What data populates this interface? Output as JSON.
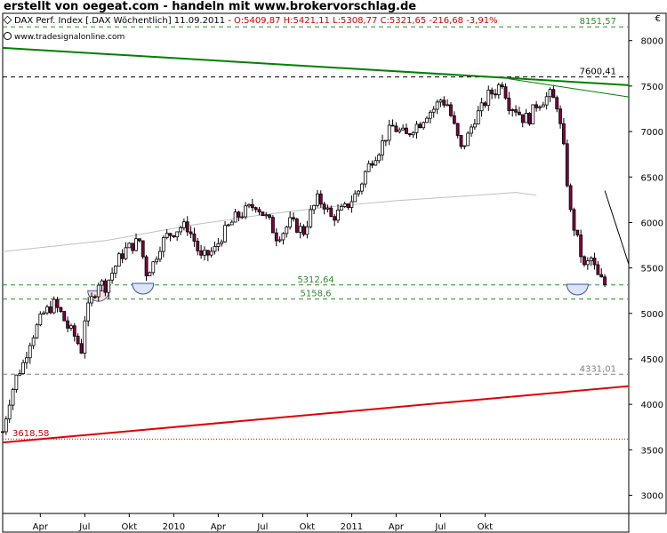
{
  "header": {
    "title": "erstellt von oegeat.com - handeln mit www.brokervorschlag.de",
    "info_black": "DAX Perf. Index [.DAX  Wöchentlich] 11.09.2011 - ",
    "info_red": "O:5409,87 H:5421,11 L:5308,77 C:5321,65 -216,68 -3,91%",
    "source": "www.tradesignalonline.com"
  },
  "colors": {
    "up_body": "#ffffff",
    "down_body": "#800040",
    "candle_line": "#000000",
    "green_line": "#008000",
    "red_line": "#e00000",
    "ma_line": "#c0c0c0",
    "support_line": "#2e8b2e",
    "resistance_line": "#000000",
    "grey_level": "#808080",
    "red_level": "#cc0000",
    "circle_blue": "#dce4f8",
    "circle_pink": "#f8e0dc"
  },
  "chart_data": {
    "type": "candlestick",
    "ylim": [
      2800,
      8300
    ],
    "y_ticks": [
      3000,
      3500,
      4000,
      4500,
      5000,
      5500,
      6000,
      6500,
      7000,
      7500,
      8000
    ],
    "y_unit_label": "€",
    "x_range": [
      0,
      183
    ],
    "x_ticks": [
      {
        "w": 11,
        "label": "Apr"
      },
      {
        "w": 24,
        "label": "Jul"
      },
      {
        "w": 37,
        "label": "Okt"
      },
      {
        "w": 50,
        "label": "2010"
      },
      {
        "w": 63,
        "label": "Apr"
      },
      {
        "w": 76,
        "label": "Jul"
      },
      {
        "w": 89,
        "label": "Okt"
      },
      {
        "w": 102,
        "label": "2011"
      },
      {
        "w": 115,
        "label": "Apr"
      },
      {
        "w": 128,
        "label": "Jul"
      },
      {
        "w": 141,
        "label": "Okt"
      }
    ],
    "levels": [
      {
        "value": 8151.57,
        "label": "8151,57",
        "style": "green"
      },
      {
        "value": 7600.41,
        "label": "7600,41",
        "style": "black"
      },
      {
        "value": 5312.64,
        "label": "5312,64",
        "style": "green"
      },
      {
        "value": 5158.6,
        "label": "5158,6",
        "style": "green"
      },
      {
        "value": 4331.01,
        "label": "4331,01",
        "style": "grey"
      },
      {
        "value": 3618.58,
        "label": "3618,58",
        "style": "red"
      }
    ],
    "trendlines": [
      {
        "name": "green-trend",
        "x1": 0,
        "y1": 7920,
        "x2": 183,
        "y2": 7510
      },
      {
        "name": "green-short-trend",
        "x1": 148,
        "y1": 7580,
        "x2": 183,
        "y2": 7380
      },
      {
        "name": "red-trend",
        "x1": 0,
        "y1": 3580,
        "x2": 183,
        "y2": 4200
      },
      {
        "name": "black-down-trend",
        "x1": 176,
        "y1": 6350,
        "x2": 183,
        "y2": 5540
      }
    ],
    "moving_average": [
      {
        "w": 0,
        "v": 5680
      },
      {
        "w": 30,
        "v": 5800
      },
      {
        "w": 55,
        "v": 5970
      },
      {
        "w": 75,
        "v": 6080
      },
      {
        "w": 95,
        "v": 6170
      },
      {
        "w": 115,
        "v": 6240
      },
      {
        "w": 135,
        "v": 6290
      },
      {
        "w": 150,
        "v": 6330
      },
      {
        "w": 156,
        "v": 6300
      }
    ],
    "circles": [
      {
        "w": 28,
        "v": 5250,
        "color": "pink"
      },
      {
        "w": 41,
        "v": 5330,
        "color": "blue"
      },
      {
        "w": 168,
        "v": 5320,
        "color": "blue"
      }
    ],
    "close_path": [
      {
        "w": 0,
        "v": 3700
      },
      {
        "w": 2,
        "v": 4050
      },
      {
        "w": 4,
        "v": 4300
      },
      {
        "w": 6,
        "v": 4450
      },
      {
        "w": 8,
        "v": 4700
      },
      {
        "w": 10,
        "v": 4850
      },
      {
        "w": 12,
        "v": 5000
      },
      {
        "w": 15,
        "v": 5100
      },
      {
        "w": 17,
        "v": 5000
      },
      {
        "w": 19,
        "v": 4850
      },
      {
        "w": 21,
        "v": 4750
      },
      {
        "w": 23,
        "v": 4600
      },
      {
        "w": 24,
        "v": 4950
      },
      {
        "w": 26,
        "v": 5150
      },
      {
        "w": 28,
        "v": 5350
      },
      {
        "w": 30,
        "v": 5300
      },
      {
        "w": 32,
        "v": 5450
      },
      {
        "w": 34,
        "v": 5600
      },
      {
        "w": 36,
        "v": 5700
      },
      {
        "w": 38,
        "v": 5750
      },
      {
        "w": 40,
        "v": 5800
      },
      {
        "w": 42,
        "v": 5450
      },
      {
        "w": 44,
        "v": 5550
      },
      {
        "w": 46,
        "v": 5750
      },
      {
        "w": 48,
        "v": 5850
      },
      {
        "w": 50,
        "v": 5900
      },
      {
        "w": 52,
        "v": 5950
      },
      {
        "w": 54,
        "v": 5950
      },
      {
        "w": 56,
        "v": 5800
      },
      {
        "w": 58,
        "v": 5600
      },
      {
        "w": 60,
        "v": 5650
      },
      {
        "w": 62,
        "v": 5700
      },
      {
        "w": 64,
        "v": 5850
      },
      {
        "w": 66,
        "v": 5950
      },
      {
        "w": 68,
        "v": 6050
      },
      {
        "w": 70,
        "v": 6100
      },
      {
        "w": 72,
        "v": 6150
      },
      {
        "w": 74,
        "v": 6200
      },
      {
        "w": 76,
        "v": 6100
      },
      {
        "w": 78,
        "v": 6000
      },
      {
        "w": 80,
        "v": 5850
      },
      {
        "w": 82,
        "v": 5900
      },
      {
        "w": 84,
        "v": 6000
      },
      {
        "w": 86,
        "v": 5950
      },
      {
        "w": 88,
        "v": 5900
      },
      {
        "w": 90,
        "v": 6100
      },
      {
        "w": 92,
        "v": 6250
      },
      {
        "w": 94,
        "v": 6200
      },
      {
        "w": 96,
        "v": 6050
      },
      {
        "w": 98,
        "v": 6100
      },
      {
        "w": 100,
        "v": 6150
      },
      {
        "w": 102,
        "v": 6250
      },
      {
        "w": 104,
        "v": 6350
      },
      {
        "w": 106,
        "v": 6550
      },
      {
        "w": 108,
        "v": 6700
      },
      {
        "w": 110,
        "v": 6800
      },
      {
        "w": 112,
        "v": 6950
      },
      {
        "w": 114,
        "v": 7050
      },
      {
        "w": 116,
        "v": 7000
      },
      {
        "w": 118,
        "v": 6950
      },
      {
        "w": 120,
        "v": 7050
      },
      {
        "w": 122,
        "v": 7100
      },
      {
        "w": 124,
        "v": 7200
      },
      {
        "w": 126,
        "v": 7250
      },
      {
        "w": 128,
        "v": 7350
      },
      {
        "w": 130,
        "v": 7300
      },
      {
        "w": 132,
        "v": 7050
      },
      {
        "w": 134,
        "v": 6800
      },
      {
        "w": 136,
        "v": 6950
      },
      {
        "w": 138,
        "v": 7150
      },
      {
        "w": 140,
        "v": 7250
      },
      {
        "w": 142,
        "v": 7400
      },
      {
        "w": 144,
        "v": 7450
      },
      {
        "w": 146,
        "v": 7550
      },
      {
        "w": 148,
        "v": 7300
      },
      {
        "w": 150,
        "v": 7250
      },
      {
        "w": 152,
        "v": 7150
      },
      {
        "w": 154,
        "v": 7150
      },
      {
        "w": 156,
        "v": 7300
      },
      {
        "w": 158,
        "v": 7350
      },
      {
        "w": 160,
        "v": 7400
      },
      {
        "w": 162,
        "v": 7300
      },
      {
        "w": 164,
        "v": 6800
      },
      {
        "w": 166,
        "v": 6100
      },
      {
        "w": 168,
        "v": 5800
      },
      {
        "w": 170,
        "v": 5500
      },
      {
        "w": 172,
        "v": 5600
      },
      {
        "w": 174,
        "v": 5400
      },
      {
        "w": 176,
        "v": 5322
      }
    ]
  }
}
